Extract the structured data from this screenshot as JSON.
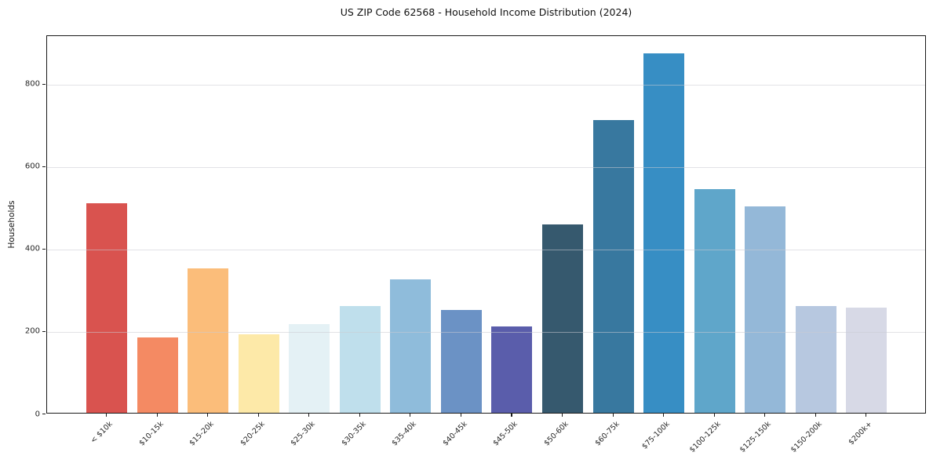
{
  "chart_data": {
    "type": "bar",
    "title": "US ZIP Code 62568 - Household Income Distribution (2024)",
    "xlabel": "",
    "ylabel": "Households",
    "categories": [
      "< $10k",
      "$10-15k",
      "$15-20k",
      "$20-25k",
      "$25-30k",
      "$30-35k",
      "$35-40k",
      "$40-45k",
      "$45-50k",
      "$50-60k",
      "$60-75k",
      "$75-100k",
      "$100-125k",
      "$125-150k",
      "$150-200k",
      "$200k+"
    ],
    "values": [
      508,
      183,
      350,
      190,
      215,
      260,
      323,
      250,
      210,
      458,
      710,
      872,
      543,
      501,
      260,
      255
    ],
    "bar_colors": [
      "#d9534f",
      "#f48a63",
      "#fbbd7a",
      "#fde9a8",
      "#e4f1f5",
      "#bfdfec",
      "#8fbcdb",
      "#6b92c5",
      "#5a5dab",
      "#36596e",
      "#38789f",
      "#378ec4",
      "#5fa6ca",
      "#94b8d8",
      "#b7c8e0",
      "#d7d9e6"
    ],
    "yticks": [
      0,
      200,
      400,
      600,
      800
    ],
    "ylim": [
      0,
      918
    ],
    "grid": "horizontal-only",
    "legend": "none"
  },
  "style_colors": {
    "spine": "#1a1a1a",
    "gridline": "#cbcbd2",
    "tick_label": "#262626",
    "background": "#ffffff"
  }
}
